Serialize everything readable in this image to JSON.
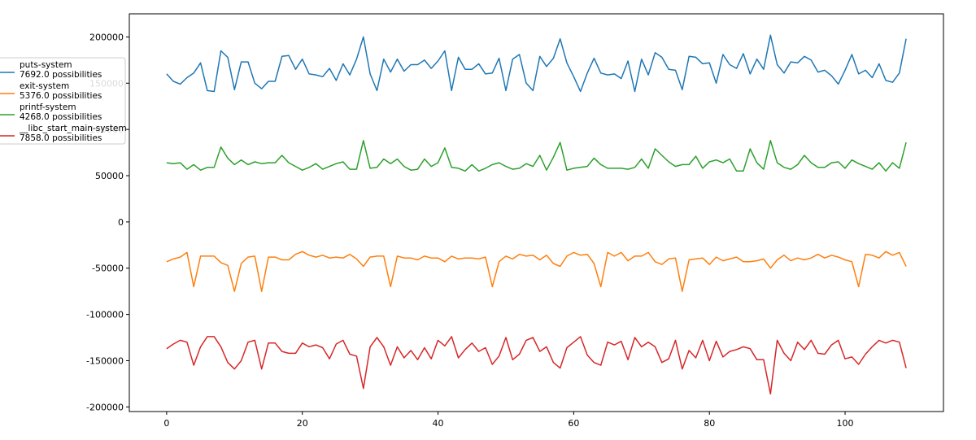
{
  "chart_data": {
    "type": "line",
    "title": "",
    "xlabel": "",
    "ylabel": "",
    "xlim": [
      -5.5,
      114.5
    ],
    "ylim": [
      -205000,
      225000
    ],
    "xticks": [
      0,
      20,
      40,
      60,
      80,
      100
    ],
    "yticks": [
      -200000,
      -150000,
      -100000,
      -50000,
      0,
      50000,
      100000,
      150000,
      200000
    ],
    "grid": false,
    "legend_position": "left, outside plot",
    "x": [
      0,
      1,
      2,
      3,
      4,
      5,
      6,
      7,
      8,
      9,
      10,
      11,
      12,
      13,
      14,
      15,
      16,
      17,
      18,
      19,
      20,
      21,
      22,
      23,
      24,
      25,
      26,
      27,
      28,
      29,
      30,
      31,
      32,
      33,
      34,
      35,
      36,
      37,
      38,
      39,
      40,
      41,
      42,
      43,
      44,
      45,
      46,
      47,
      48,
      49,
      50,
      51,
      52,
      53,
      54,
      55,
      56,
      57,
      58,
      59,
      60,
      61,
      62,
      63,
      64,
      65,
      66,
      67,
      68,
      69,
      70,
      71,
      72,
      73,
      74,
      75,
      76,
      77,
      78,
      79,
      80,
      81,
      82,
      83,
      84,
      85,
      86,
      87,
      88,
      89,
      90,
      91,
      92,
      93,
      94,
      95,
      96,
      97,
      98,
      99,
      100,
      101,
      102,
      103,
      104,
      105,
      106,
      107,
      108,
      109
    ],
    "series": [
      {
        "name": "puts-system",
        "subtitle": "7692.0 possibilities",
        "color": "#1f77b4",
        "values": [
          160000,
          152000,
          149000,
          156000,
          161000,
          172000,
          142000,
          141000,
          185000,
          178000,
          143000,
          173000,
          173000,
          150000,
          144000,
          152000,
          152000,
          179000,
          180000,
          165000,
          176000,
          160000,
          159000,
          157000,
          166000,
          153000,
          171000,
          159000,
          176000,
          200000,
          160000,
          142000,
          176000,
          162000,
          176000,
          163000,
          170000,
          170000,
          175000,
          166000,
          174000,
          185000,
          142000,
          178000,
          165000,
          165000,
          171000,
          160000,
          161000,
          177000,
          142000,
          176000,
          181000,
          150000,
          142000,
          179000,
          168000,
          177000,
          198000,
          172000,
          157000,
          141000,
          161000,
          177000,
          161000,
          159000,
          160000,
          155000,
          174000,
          141000,
          176000,
          159000,
          183000,
          178000,
          165000,
          164000,
          143000,
          179000,
          178000,
          171000,
          172000,
          150000,
          181000,
          170000,
          166000,
          182000,
          160000,
          176000,
          165000,
          202000,
          170000,
          161000,
          173000,
          172000,
          179000,
          175000,
          162000,
          164000,
          158000,
          149000,
          164000,
          181000,
          160000,
          164000,
          156000,
          171000,
          153000,
          151000,
          161000,
          198000
        ]
      },
      {
        "name": "exit-system",
        "subtitle": "5376.0 possibilities",
        "color": "#ff7f0e",
        "values": [
          -43000,
          -40000,
          -38000,
          -33000,
          -70000,
          -37000,
          -37000,
          -37000,
          -44000,
          -47000,
          -75000,
          -45000,
          -38000,
          -37000,
          -75000,
          -38000,
          -38000,
          -41000,
          -41000,
          -35000,
          -32000,
          -36000,
          -38000,
          -36000,
          -39000,
          -38000,
          -39000,
          -35000,
          -40000,
          -48000,
          -38000,
          -37000,
          -37000,
          -70000,
          -37000,
          -39000,
          -39000,
          -41000,
          -37000,
          -39000,
          -39000,
          -43000,
          -37000,
          -40000,
          -39000,
          -39000,
          -40000,
          -38000,
          -70000,
          -43000,
          -37000,
          -40000,
          -35000,
          -37000,
          -36000,
          -41000,
          -36000,
          -45000,
          -48000,
          -37000,
          -33000,
          -36000,
          -35000,
          -45000,
          -70000,
          -33000,
          -37000,
          -33000,
          -42000,
          -37000,
          -37000,
          -33000,
          -43000,
          -46000,
          -40000,
          -39000,
          -75000,
          -41000,
          -40000,
          -39000,
          -46000,
          -38000,
          -42000,
          -40000,
          -38000,
          -43000,
          -43000,
          -42000,
          -40000,
          -50000,
          -41000,
          -36000,
          -42000,
          -39000,
          -41000,
          -39000,
          -35000,
          -39000,
          -36000,
          -38000,
          -41000,
          -43000,
          -70000,
          -35000,
          -36000,
          -39000,
          -32000,
          -36000,
          -33000,
          -48000
        ]
      },
      {
        "name": "printf-system",
        "subtitle": "4268.0 possibilities",
        "color": "#2ca02c",
        "values": [
          64000,
          63000,
          64000,
          57000,
          62000,
          56000,
          59000,
          59000,
          81000,
          69000,
          62000,
          67000,
          62000,
          65000,
          63000,
          64000,
          64000,
          72000,
          64000,
          60000,
          56000,
          59000,
          63000,
          57000,
          60000,
          63000,
          65000,
          57000,
          57000,
          88000,
          58000,
          59000,
          68000,
          63000,
          68000,
          60000,
          56000,
          57000,
          68000,
          60000,
          64000,
          80000,
          59000,
          58000,
          55000,
          62000,
          55000,
          58000,
          62000,
          64000,
          60000,
          57000,
          58000,
          63000,
          60000,
          72000,
          56000,
          70000,
          86000,
          56000,
          58000,
          59000,
          60000,
          69000,
          62000,
          58000,
          58000,
          58000,
          57000,
          59000,
          68000,
          58000,
          79000,
          72000,
          65000,
          60000,
          62000,
          62000,
          71000,
          58000,
          65000,
          67000,
          64000,
          68000,
          55000,
          55000,
          79000,
          64000,
          57000,
          88000,
          64000,
          59000,
          57000,
          62000,
          72000,
          64000,
          59000,
          59000,
          64000,
          65000,
          58000,
          67000,
          63000,
          60000,
          57000,
          64000,
          55000,
          64000,
          58000,
          86000
        ]
      },
      {
        "name": "__libc_start_main-system",
        "subtitle": "7858.0 possibilities",
        "color": "#d62728",
        "values": [
          -137000,
          -132000,
          -128000,
          -130000,
          -155000,
          -135000,
          -124000,
          -124000,
          -135000,
          -152000,
          -159000,
          -150000,
          -130000,
          -128000,
          -159000,
          -131000,
          -131000,
          -140000,
          -142000,
          -142000,
          -131000,
          -135000,
          -133000,
          -136000,
          -148000,
          -132000,
          -128000,
          -143000,
          -145000,
          -180000,
          -135000,
          -125000,
          -135000,
          -155000,
          -135000,
          -147000,
          -139000,
          -149000,
          -136000,
          -148000,
          -128000,
          -134000,
          -124000,
          -147000,
          -138000,
          -131000,
          -140000,
          -136000,
          -154000,
          -145000,
          -125000,
          -149000,
          -143000,
          -128000,
          -125000,
          -140000,
          -135000,
          -152000,
          -158000,
          -136000,
          -130000,
          -124000,
          -144000,
          -152000,
          -155000,
          -130000,
          -133000,
          -129000,
          -149000,
          -125000,
          -135000,
          -130000,
          -135000,
          -152000,
          -148000,
          -128000,
          -159000,
          -139000,
          -147000,
          -128000,
          -150000,
          -129000,
          -146000,
          -140000,
          -138000,
          -135000,
          -137000,
          -149000,
          -149000,
          -186000,
          -128000,
          -142000,
          -150000,
          -130000,
          -138000,
          -128000,
          -142000,
          -143000,
          -133000,
          -128000,
          -148000,
          -146000,
          -154000,
          -143000,
          -135000,
          -128000,
          -131000,
          -128000,
          -130000,
          -158000
        ]
      }
    ]
  }
}
